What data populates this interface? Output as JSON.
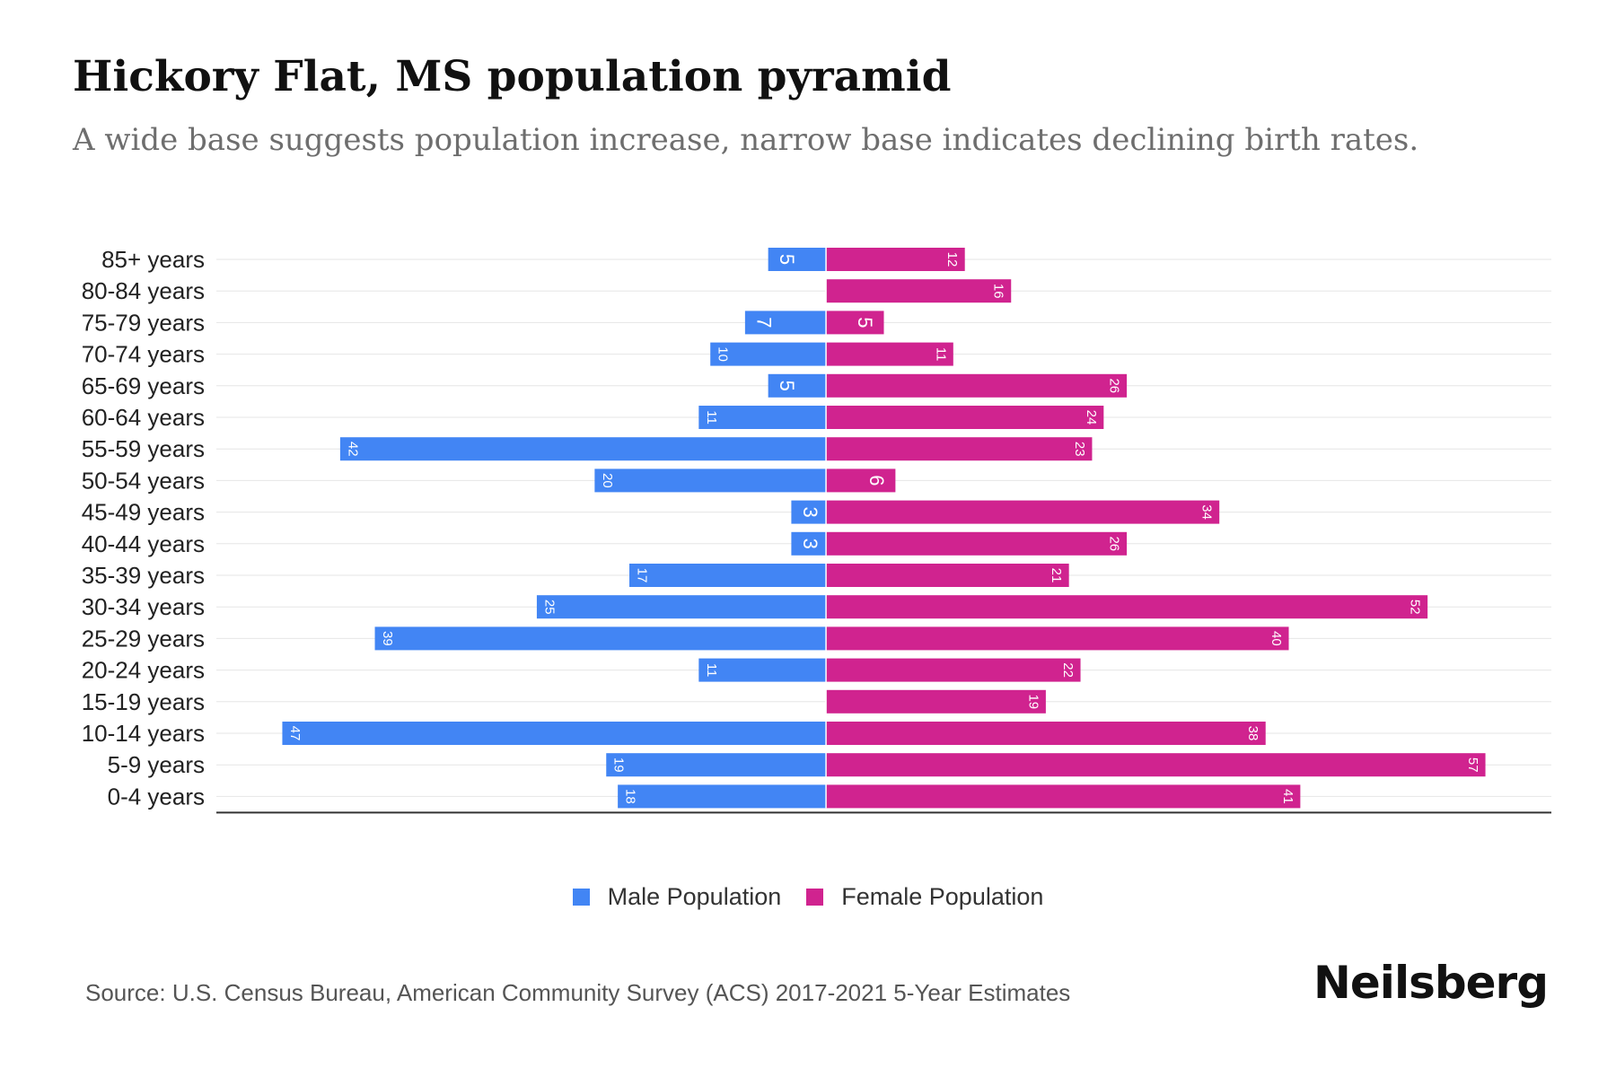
{
  "title": "Hickory Flat, MS population pyramid",
  "subtitle": "A wide base suggests population increase, narrow base indicates declining birth rates.",
  "legend": {
    "male_label": "Male Population",
    "female_label": "Female Population"
  },
  "source": "Source: U.S. Census Bureau, American Community Survey (ACS) 2017-2021 5-Year Estimates",
  "brand": "Neilsberg",
  "colors": {
    "male": "#4285f4",
    "female": "#d0238f",
    "grid": "#e6e6e6",
    "axis": "#333333"
  },
  "chart_data": {
    "type": "bar",
    "orientation": "horizontal-pyramid",
    "title": "Hickory Flat, MS population pyramid",
    "categories": [
      "85+ years",
      "80-84 years",
      "75-79 years",
      "70-74 years",
      "65-69 years",
      "60-64 years",
      "55-59 years",
      "50-54 years",
      "45-49 years",
      "40-44 years",
      "35-39 years",
      "30-34 years",
      "25-29 years",
      "20-24 years",
      "15-19 years",
      "10-14 years",
      "5-9 years",
      "0-4 years"
    ],
    "series": [
      {
        "name": "Male Population",
        "values": [
          5,
          0,
          7,
          10,
          5,
          11,
          42,
          20,
          3,
          3,
          17,
          25,
          39,
          11,
          0,
          47,
          19,
          18
        ]
      },
      {
        "name": "Female Population",
        "values": [
          12,
          16,
          5,
          11,
          26,
          24,
          23,
          6,
          34,
          26,
          21,
          52,
          40,
          22,
          19,
          38,
          57,
          41
        ]
      }
    ],
    "xlim": [
      -52.7,
      62.7
    ],
    "legend_position": "bottom-center"
  }
}
